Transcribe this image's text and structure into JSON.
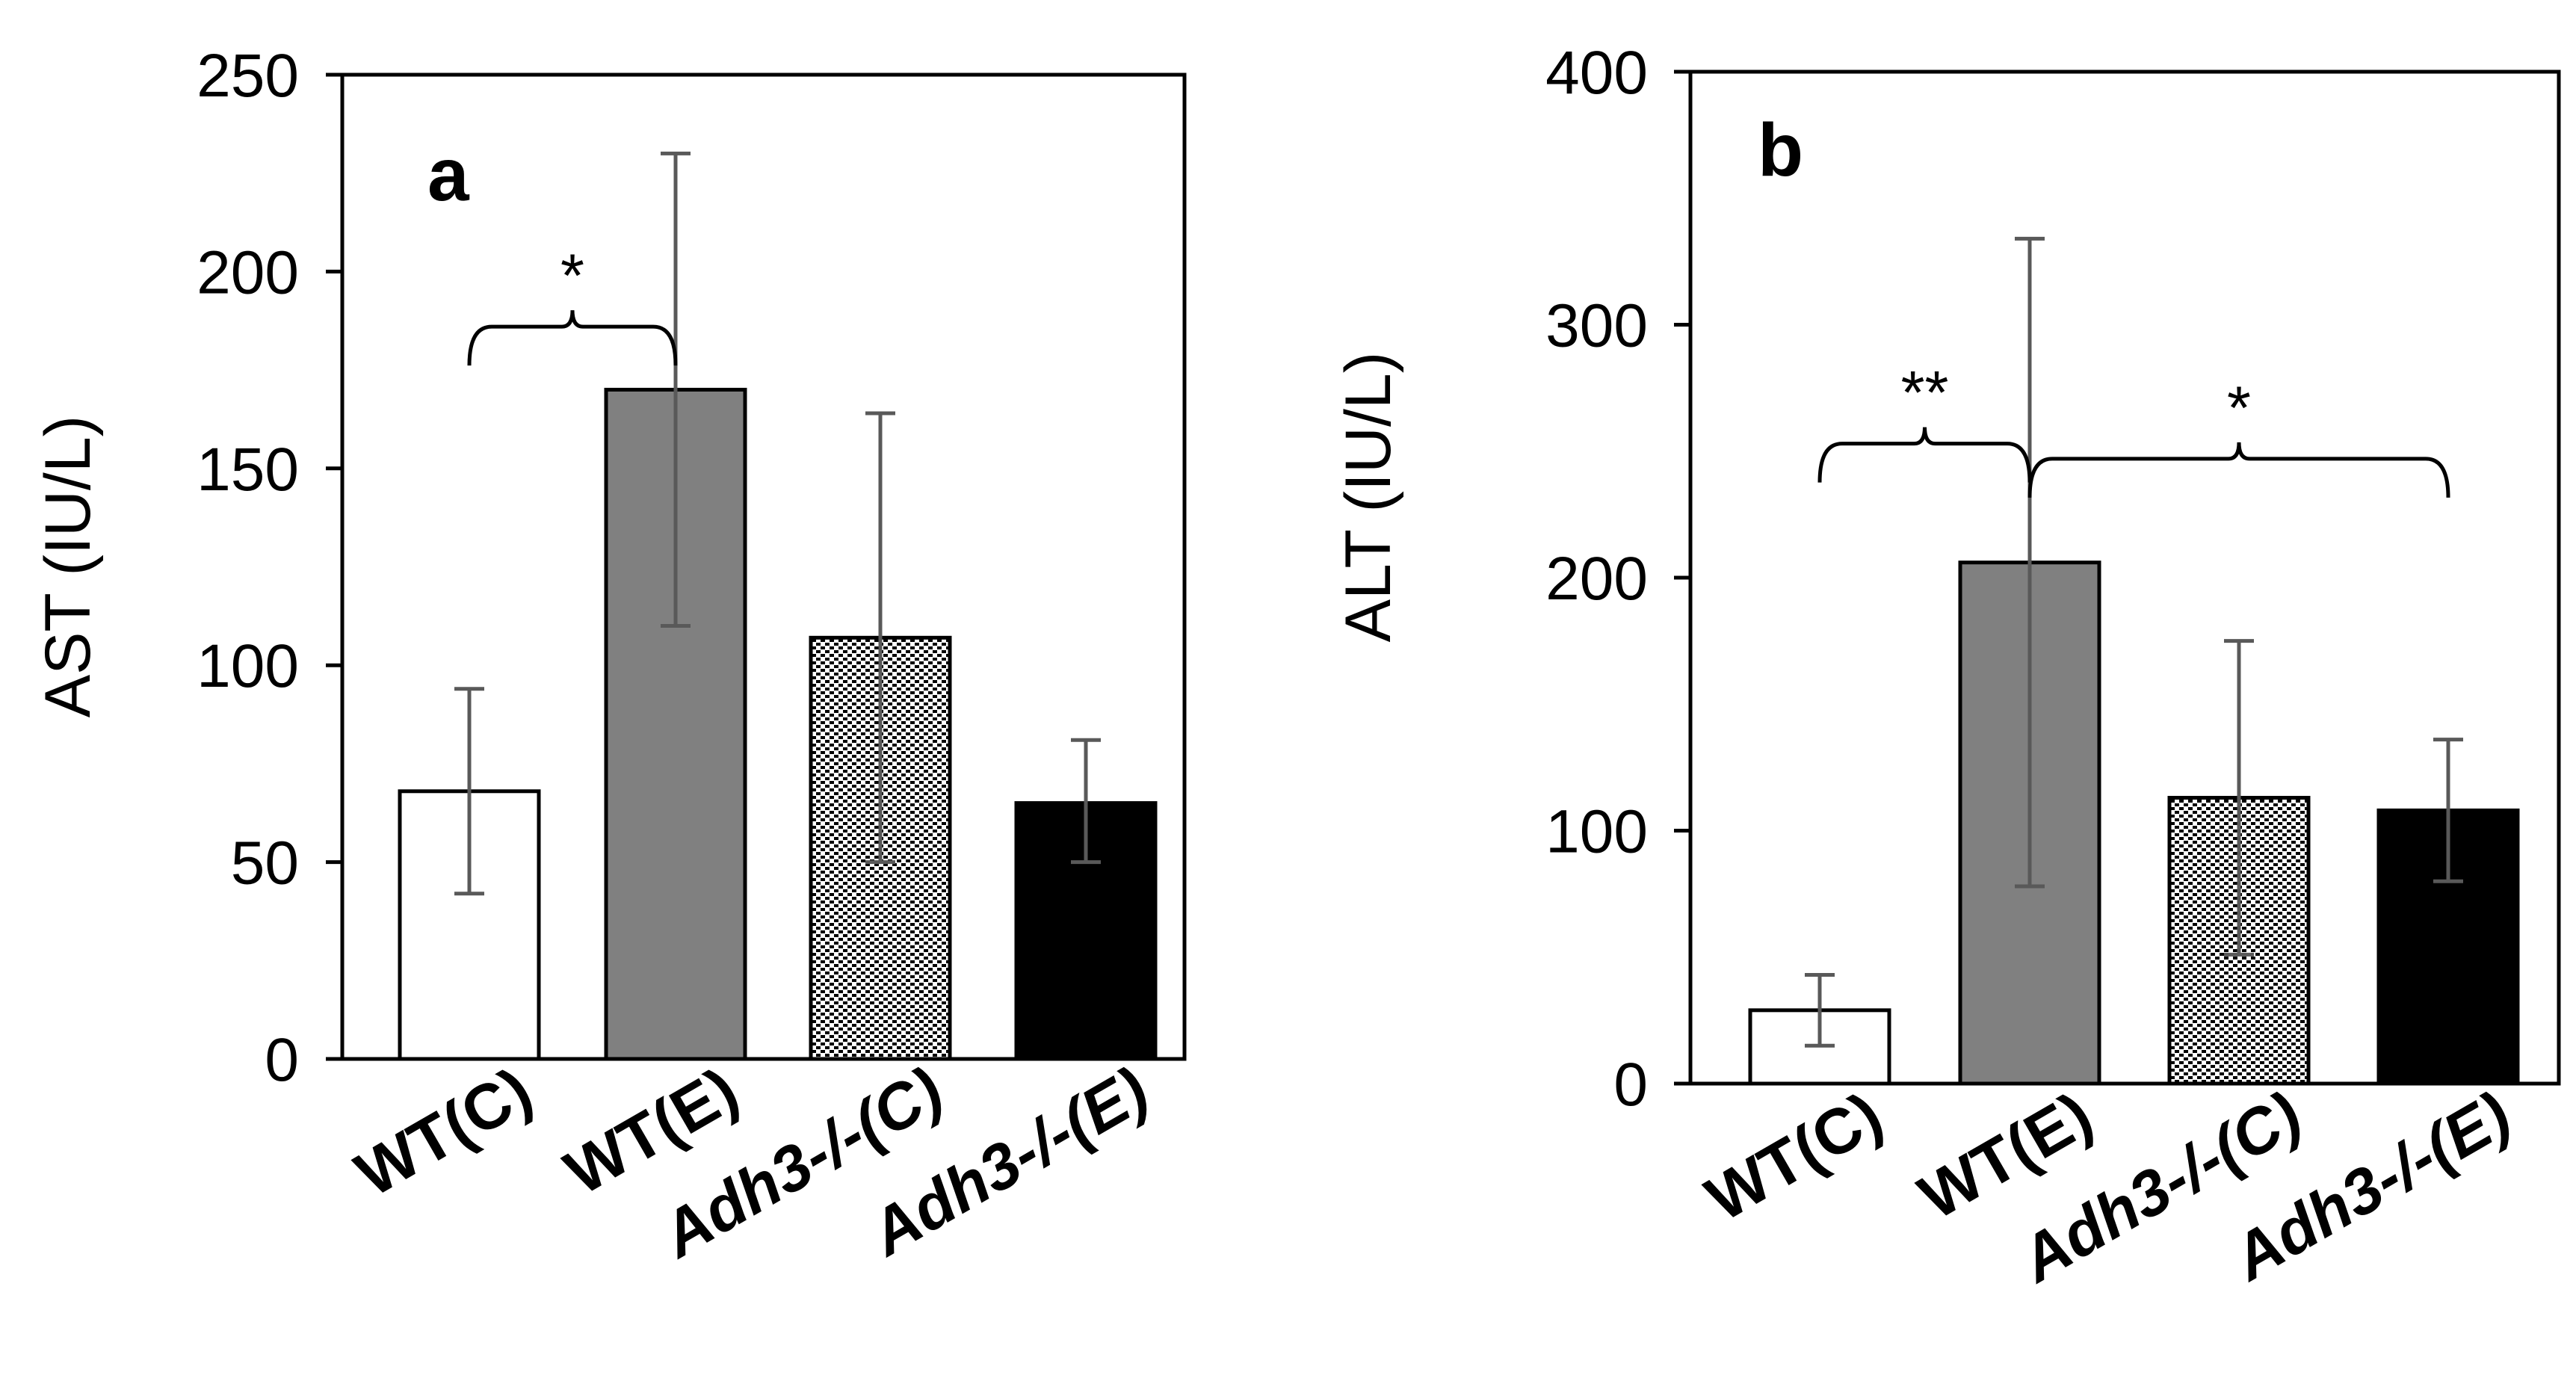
{
  "chart_data": [
    {
      "type": "bar",
      "panel_label": "a",
      "ylabel": "AST (IU/L)",
      "ylim": [
        0,
        250
      ],
      "yticks": [
        "0",
        "50",
        "100",
        "150",
        "200",
        "250"
      ],
      "categories": [
        "WT(C)",
        "WT(E)",
        "Adh3-/-(C)",
        "Adh3-/-(E)"
      ],
      "italic_categories": [
        false,
        false,
        true,
        true
      ],
      "values": [
        68,
        170,
        107,
        65
      ],
      "error_low": [
        42,
        110,
        50,
        50
      ],
      "error_high": [
        94,
        230,
        164,
        81
      ],
      "fills": [
        "white",
        "gray",
        "dotted",
        "black"
      ],
      "significance": [
        {
          "from": 0,
          "to": 1,
          "label": "*",
          "y": 186
        }
      ]
    },
    {
      "type": "bar",
      "panel_label": "b",
      "ylabel": "ALT (IU/L)",
      "ylim": [
        0,
        400
      ],
      "yticks": [
        "0",
        "100",
        "200",
        "300",
        "400"
      ],
      "categories": [
        "WT(C)",
        "WT(E)",
        "Adh3-/-(C)",
        "Adh3-/-(E)"
      ],
      "italic_categories": [
        false,
        false,
        true,
        true
      ],
      "values": [
        29,
        206,
        113,
        108
      ],
      "error_low": [
        15,
        78,
        51,
        80
      ],
      "error_high": [
        43,
        334,
        175,
        136
      ],
      "fills": [
        "white",
        "gray",
        "dotted",
        "black"
      ],
      "significance": [
        {
          "from": 0,
          "to": 1,
          "label": "**",
          "y": 253
        },
        {
          "from": 1,
          "to": 3,
          "label": "*",
          "y": 247
        }
      ]
    }
  ],
  "colors": {
    "gray_bar": "#808080",
    "black_bar": "#000000",
    "error_bar": "#595959",
    "axis": "#000000"
  }
}
